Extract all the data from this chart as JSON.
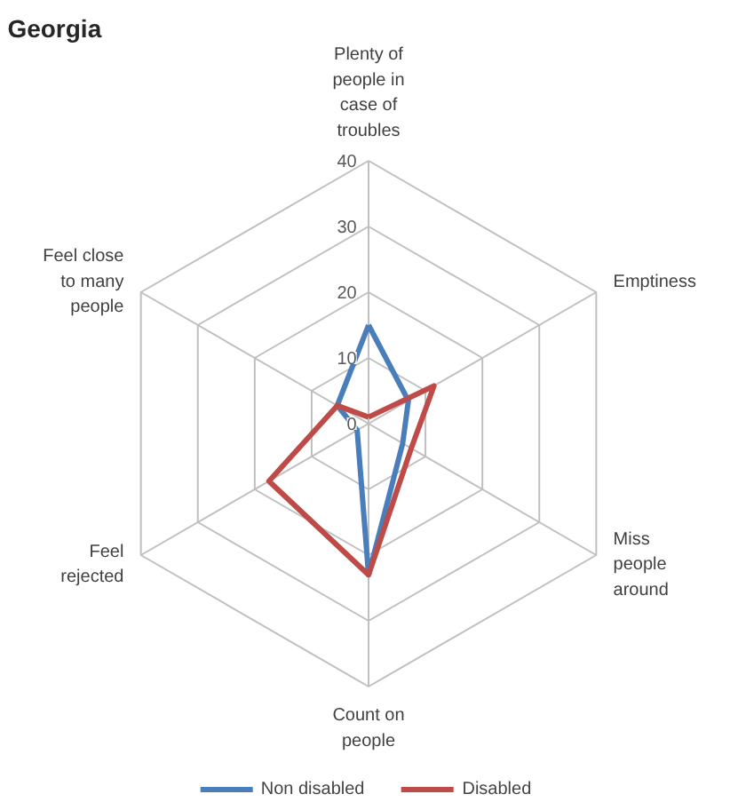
{
  "chart_data": {
    "type": "radar",
    "title": "Georgia",
    "categories": [
      "Plenty of people in case of troubles",
      "Emptiness",
      "Miss people around",
      "Count on people",
      "Feel rejected",
      "Feel close to many people"
    ],
    "series": [
      {
        "name": "Non disabled",
        "color": "#4a7ebb",
        "values": [
          15,
          7,
          6,
          23,
          2,
          5.5
        ]
      },
      {
        "name": "Disabled",
        "color": "#be4b48",
        "values": [
          1,
          11.5,
          7.5,
          23,
          17.5,
          5.5
        ]
      }
    ],
    "ylim": [
      0,
      40
    ],
    "yticks": [
      0,
      10,
      20,
      30,
      40
    ],
    "grid": true,
    "legend": "bottom",
    "marker": "none"
  }
}
